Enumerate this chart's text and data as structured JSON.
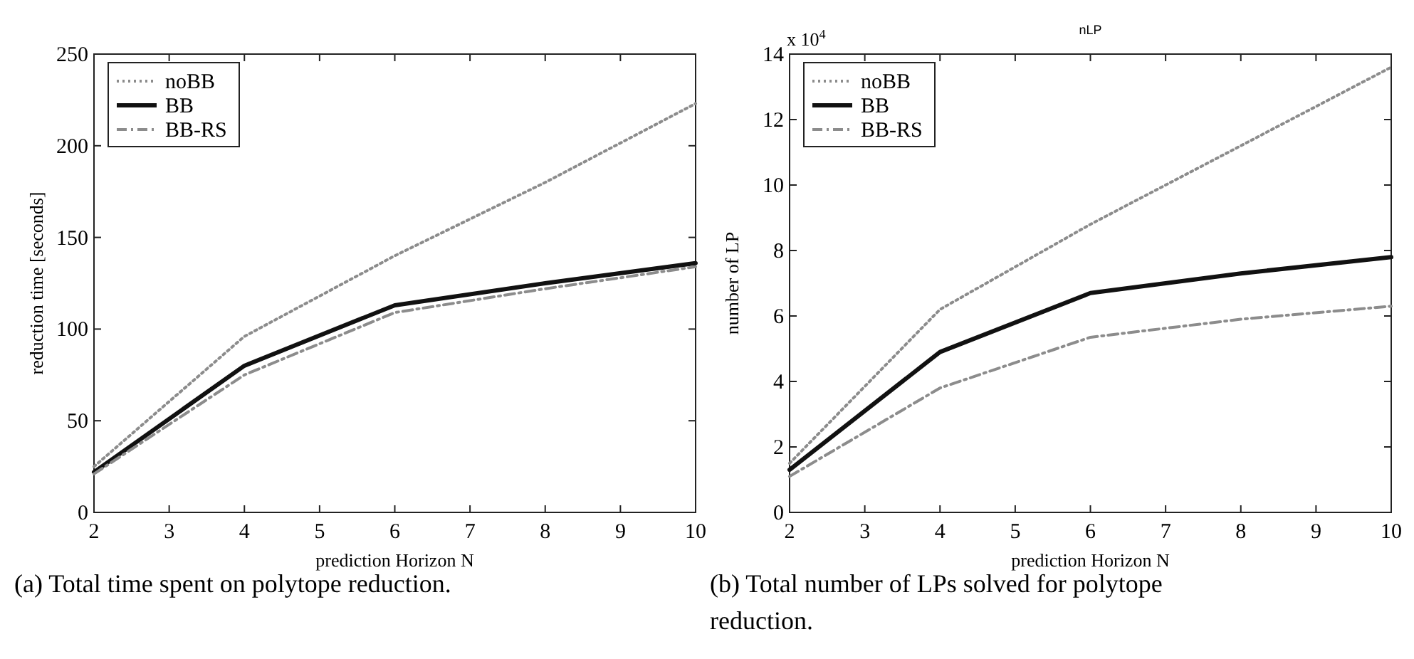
{
  "chart_data": [
    {
      "type": "line",
      "xlabel": "prediction Horizon N",
      "ylabel": "reduction time [seconds]",
      "x": [
        2,
        4,
        6,
        8,
        10
      ],
      "xlim": [
        2,
        10
      ],
      "xticks": [
        2,
        3,
        4,
        5,
        6,
        7,
        8,
        9,
        10
      ],
      "ylim": [
        0,
        250
      ],
      "yticks": [
        0,
        50,
        100,
        150,
        200,
        250
      ],
      "grid": false,
      "legend": "top left",
      "marker": "none",
      "series": [
        {
          "name": "noBB",
          "color": "#8c8c8c",
          "line_style": "dotted",
          "values": [
            25,
            96,
            140,
            180,
            223
          ]
        },
        {
          "name": "BB",
          "color": "#111111",
          "line_style": "solid",
          "values": [
            22,
            80,
            113,
            125,
            136
          ]
        },
        {
          "name": "BB-RS",
          "color": "#8c8c8c",
          "line_style": "dashed",
          "values": [
            21,
            75,
            109,
            122,
            134
          ]
        }
      ],
      "annotations": [
        "(a) Total time spent on polytope reduction."
      ]
    },
    {
      "type": "line",
      "title": "nLP",
      "xlabel": "prediction Horizon N",
      "ylabel": "number of LP",
      "x": [
        2,
        4,
        6,
        8,
        10
      ],
      "xlim": [
        2,
        10
      ],
      "xticks": [
        2,
        3,
        4,
        5,
        6,
        7,
        8,
        9,
        10
      ],
      "ylim": [
        0,
        14
      ],
      "yticks": [
        0,
        2,
        4,
        6,
        8,
        10,
        12,
        14
      ],
      "grid": false,
      "legend": "top left",
      "marker": "none",
      "series": [
        {
          "name": "noBB",
          "color": "#8c8c8c",
          "line_style": "dotted",
          "values": [
            1.5,
            6.2,
            8.8,
            11.2,
            13.6
          ]
        },
        {
          "name": "BB",
          "color": "#111111",
          "line_style": "solid",
          "values": [
            1.3,
            4.9,
            6.7,
            7.3,
            7.8
          ]
        },
        {
          "name": "BB-RS",
          "color": "#8c8c8c",
          "line_style": "dashed",
          "values": [
            1.1,
            3.8,
            5.35,
            5.9,
            6.3
          ]
        }
      ],
      "annotations": [
        "x 10$^{4}$",
        "(b) Total number of LPs solved for polytope reduction."
      ]
    }
  ]
}
